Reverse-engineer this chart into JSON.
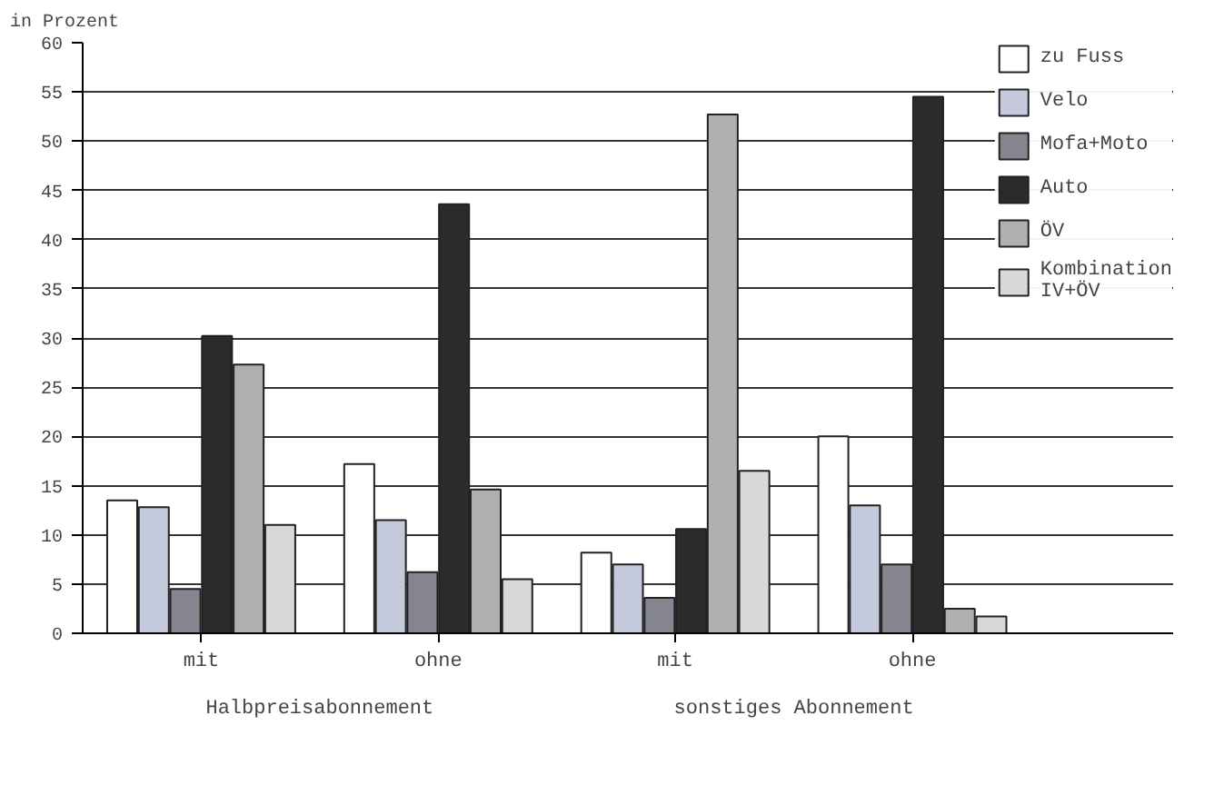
{
  "chart_data": {
    "type": "bar",
    "ylabel": "in Prozent",
    "categories": [
      "mit",
      "ohne",
      "mit",
      "ohne"
    ],
    "series": [
      {
        "name": "zu Fuss",
        "color": "#ffffff",
        "values": [
          13.5,
          17.2,
          8.2,
          20
        ]
      },
      {
        "name": "Velo",
        "color": "#c5c9dc",
        "values": [
          12.8,
          11.5,
          7,
          13
        ]
      },
      {
        "name": "Mofa+Moto",
        "color": "#85858f",
        "values": [
          4.5,
          6.2,
          3.6,
          7
        ]
      },
      {
        "name": "Auto",
        "color": "#2b2b2b",
        "values": [
          30.2,
          43.6,
          10.6,
          54.5
        ]
      },
      {
        "name": "ÖV",
        "color": "#b0b0b0",
        "values": [
          27.3,
          14.6,
          52.7,
          2.5
        ]
      },
      {
        "name": "Kombination\nIV+ÖV",
        "color": "#d8d8d8",
        "values": [
          11,
          5.5,
          16.5,
          1.7
        ]
      }
    ],
    "annotations": [
      "Halbpreisabonnement",
      "sonstiges Abonnement"
    ],
    "ylim": [
      0,
      60
    ],
    "yticks": [
      0,
      5,
      10,
      15,
      20,
      25,
      30,
      35,
      40,
      45,
      50,
      55,
      60
    ],
    "grid": "y",
    "legend": "right"
  }
}
